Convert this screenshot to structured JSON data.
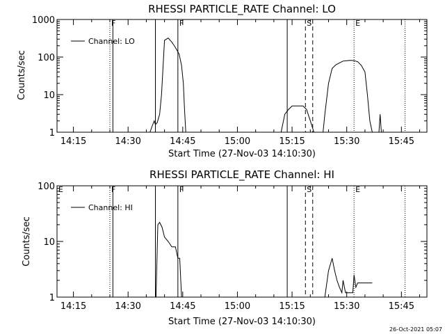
{
  "footer": {
    "timestamp": "26-Oct-2021 05:07"
  },
  "chart_data": [
    {
      "type": "line",
      "title": "RHESSI PARTICLE_RATE Channel: LO",
      "xlabel": "Start Time (27-Nov-03 14:10:30)",
      "ylabel": "Counts/sec",
      "yscale": "log",
      "xlim": [
        "14:10:30",
        "15:52:00"
      ],
      "ylim": [
        1,
        1000
      ],
      "x_ticks": [
        "14:15",
        "14:30",
        "14:45",
        "15:00",
        "15:15",
        "15:30",
        "15:45"
      ],
      "y_ticks": [
        "1",
        "10",
        "100",
        "1000"
      ],
      "legend": {
        "placement": "top-left",
        "entries": [
          "Channel: LO"
        ]
      },
      "series": [
        {
          "name": "Channel: LO",
          "x": [
            "14:36:00",
            "14:36:40",
            "14:37:10",
            "14:37:30",
            "14:38:00",
            "14:38:40",
            "14:39:10",
            "14:40:00",
            "14:41:00",
            "14:42:00",
            "14:43:00",
            "14:44:00",
            "14:44:40",
            "14:45:10",
            "14:45:30",
            "14:45:50",
            "15:12:00",
            "15:13:00",
            "15:14:00",
            "15:15:00",
            "15:16:00",
            "15:17:00",
            "15:18:00",
            "15:19:00",
            "15:20:00",
            "15:21:00",
            "15:23:30",
            "15:24:00",
            "15:25:00",
            "15:26:00",
            "15:27:00",
            "15:28:00",
            "15:29:00",
            "15:30:00",
            "15:31:00",
            "15:32:00",
            "15:33:00",
            "15:34:00",
            "15:35:00",
            "15:35:40",
            "15:36:20",
            "15:37:00",
            "15:38:50",
            "15:39:10",
            "15:39:30"
          ],
          "y": [
            1,
            1.5,
            2,
            1.6,
            1.8,
            3,
            10,
            280,
            320,
            250,
            180,
            120,
            60,
            20,
            4,
            1,
            1,
            3,
            4,
            5,
            5,
            5,
            5,
            4,
            2,
            1,
            1,
            3,
            20,
            50,
            62,
            70,
            78,
            80,
            82,
            80,
            75,
            60,
            40,
            10,
            2,
            1,
            1,
            3,
            1
          ],
          "gaps_after_index": [
            15,
            25,
            41
          ]
        }
      ],
      "vertical_markers": [
        {
          "label": "F",
          "x": "14:25:00",
          "style": "dotted"
        },
        {
          "label": "",
          "x": "14:25:50",
          "style": "solid"
        },
        {
          "label": "",
          "x": "14:37:30",
          "style": "solid"
        },
        {
          "label": "F",
          "x": "14:43:40",
          "style": "solid"
        },
        {
          "label": "",
          "x": "15:13:40",
          "style": "solid"
        },
        {
          "label": "S",
          "x": "15:18:40",
          "style": "dashed"
        },
        {
          "label": "",
          "x": "15:20:40",
          "style": "dashed"
        },
        {
          "label": "E",
          "x": "15:32:00",
          "style": "dotted"
        },
        {
          "label": "",
          "x": "15:46:00",
          "style": "dotted"
        }
      ]
    },
    {
      "type": "line",
      "title": "RHESSI PARTICLE_RATE Channel: HI",
      "xlabel": "Start Time (27-Nov-03 14:10:30)",
      "ylabel": "Counts/sec",
      "yscale": "log",
      "xlim": [
        "14:10:30",
        "15:52:00"
      ],
      "ylim": [
        1,
        100
      ],
      "x_ticks": [
        "14:15",
        "14:30",
        "14:45",
        "15:00",
        "15:15",
        "15:30",
        "15:45"
      ],
      "y_ticks": [
        "1",
        "10",
        "100"
      ],
      "legend": {
        "placement": "top-left",
        "entries": [
          "Channel: HI"
        ]
      },
      "series": [
        {
          "name": "Channel: HI",
          "x": [
            "14:37:40",
            "14:38:10",
            "14:38:40",
            "14:39:20",
            "14:40:00",
            "14:41:00",
            "14:42:00",
            "14:43:00",
            "14:43:40",
            "14:44:10",
            "14:44:40",
            "15:24:00",
            "15:25:00",
            "15:26:00",
            "15:26:40",
            "15:27:20",
            "15:28:00",
            "15:28:40",
            "15:29:00",
            "15:29:40",
            "15:30:20",
            "15:31:00",
            "15:31:40",
            "15:32:00",
            "15:32:30",
            "15:33:00",
            "15:35:00",
            "15:37:00"
          ],
          "y": [
            1,
            20,
            22,
            18,
            12,
            10,
            8,
            8,
            5,
            5,
            1,
            1,
            3,
            5,
            3,
            2,
            1.5,
            1.2,
            2,
            1.2,
            1.2,
            1.2,
            1.2,
            2.5,
            1.5,
            1.8,
            1.8,
            1.8
          ],
          "gaps_after_index": [
            10
          ]
        }
      ],
      "vertical_markers": [
        {
          "label": "E",
          "x": "14:10:30",
          "style": "none"
        },
        {
          "label": "F",
          "x": "14:25:00",
          "style": "dotted"
        },
        {
          "label": "",
          "x": "14:25:50",
          "style": "solid"
        },
        {
          "label": "",
          "x": "14:37:30",
          "style": "solid"
        },
        {
          "label": "F",
          "x": "14:43:40",
          "style": "solid"
        },
        {
          "label": "",
          "x": "15:13:40",
          "style": "solid"
        },
        {
          "label": "S",
          "x": "15:18:40",
          "style": "dashed"
        },
        {
          "label": "",
          "x": "15:20:40",
          "style": "dashed"
        },
        {
          "label": "E",
          "x": "15:32:00",
          "style": "dotted"
        },
        {
          "label": "",
          "x": "15:46:00",
          "style": "dotted"
        }
      ]
    }
  ]
}
